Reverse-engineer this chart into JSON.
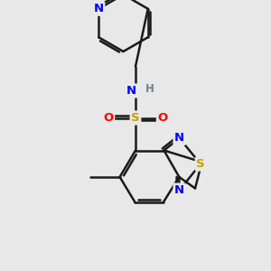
{
  "bg_color": "#e8e8e8",
  "bond_color": "#1a1a1a",
  "bond_width": 1.8,
  "atom_colors": {
    "N": "#0000ff",
    "S_thiadiazole": "#c8a000",
    "S_sulfonyl": "#c8a000",
    "O": "#ff0000",
    "C": "#1a1a1a",
    "H": "#708090"
  },
  "figsize": [
    3.0,
    3.0
  ],
  "dpi": 100,
  "xlim": [
    0,
    10
  ],
  "ylim": [
    0,
    10
  ]
}
